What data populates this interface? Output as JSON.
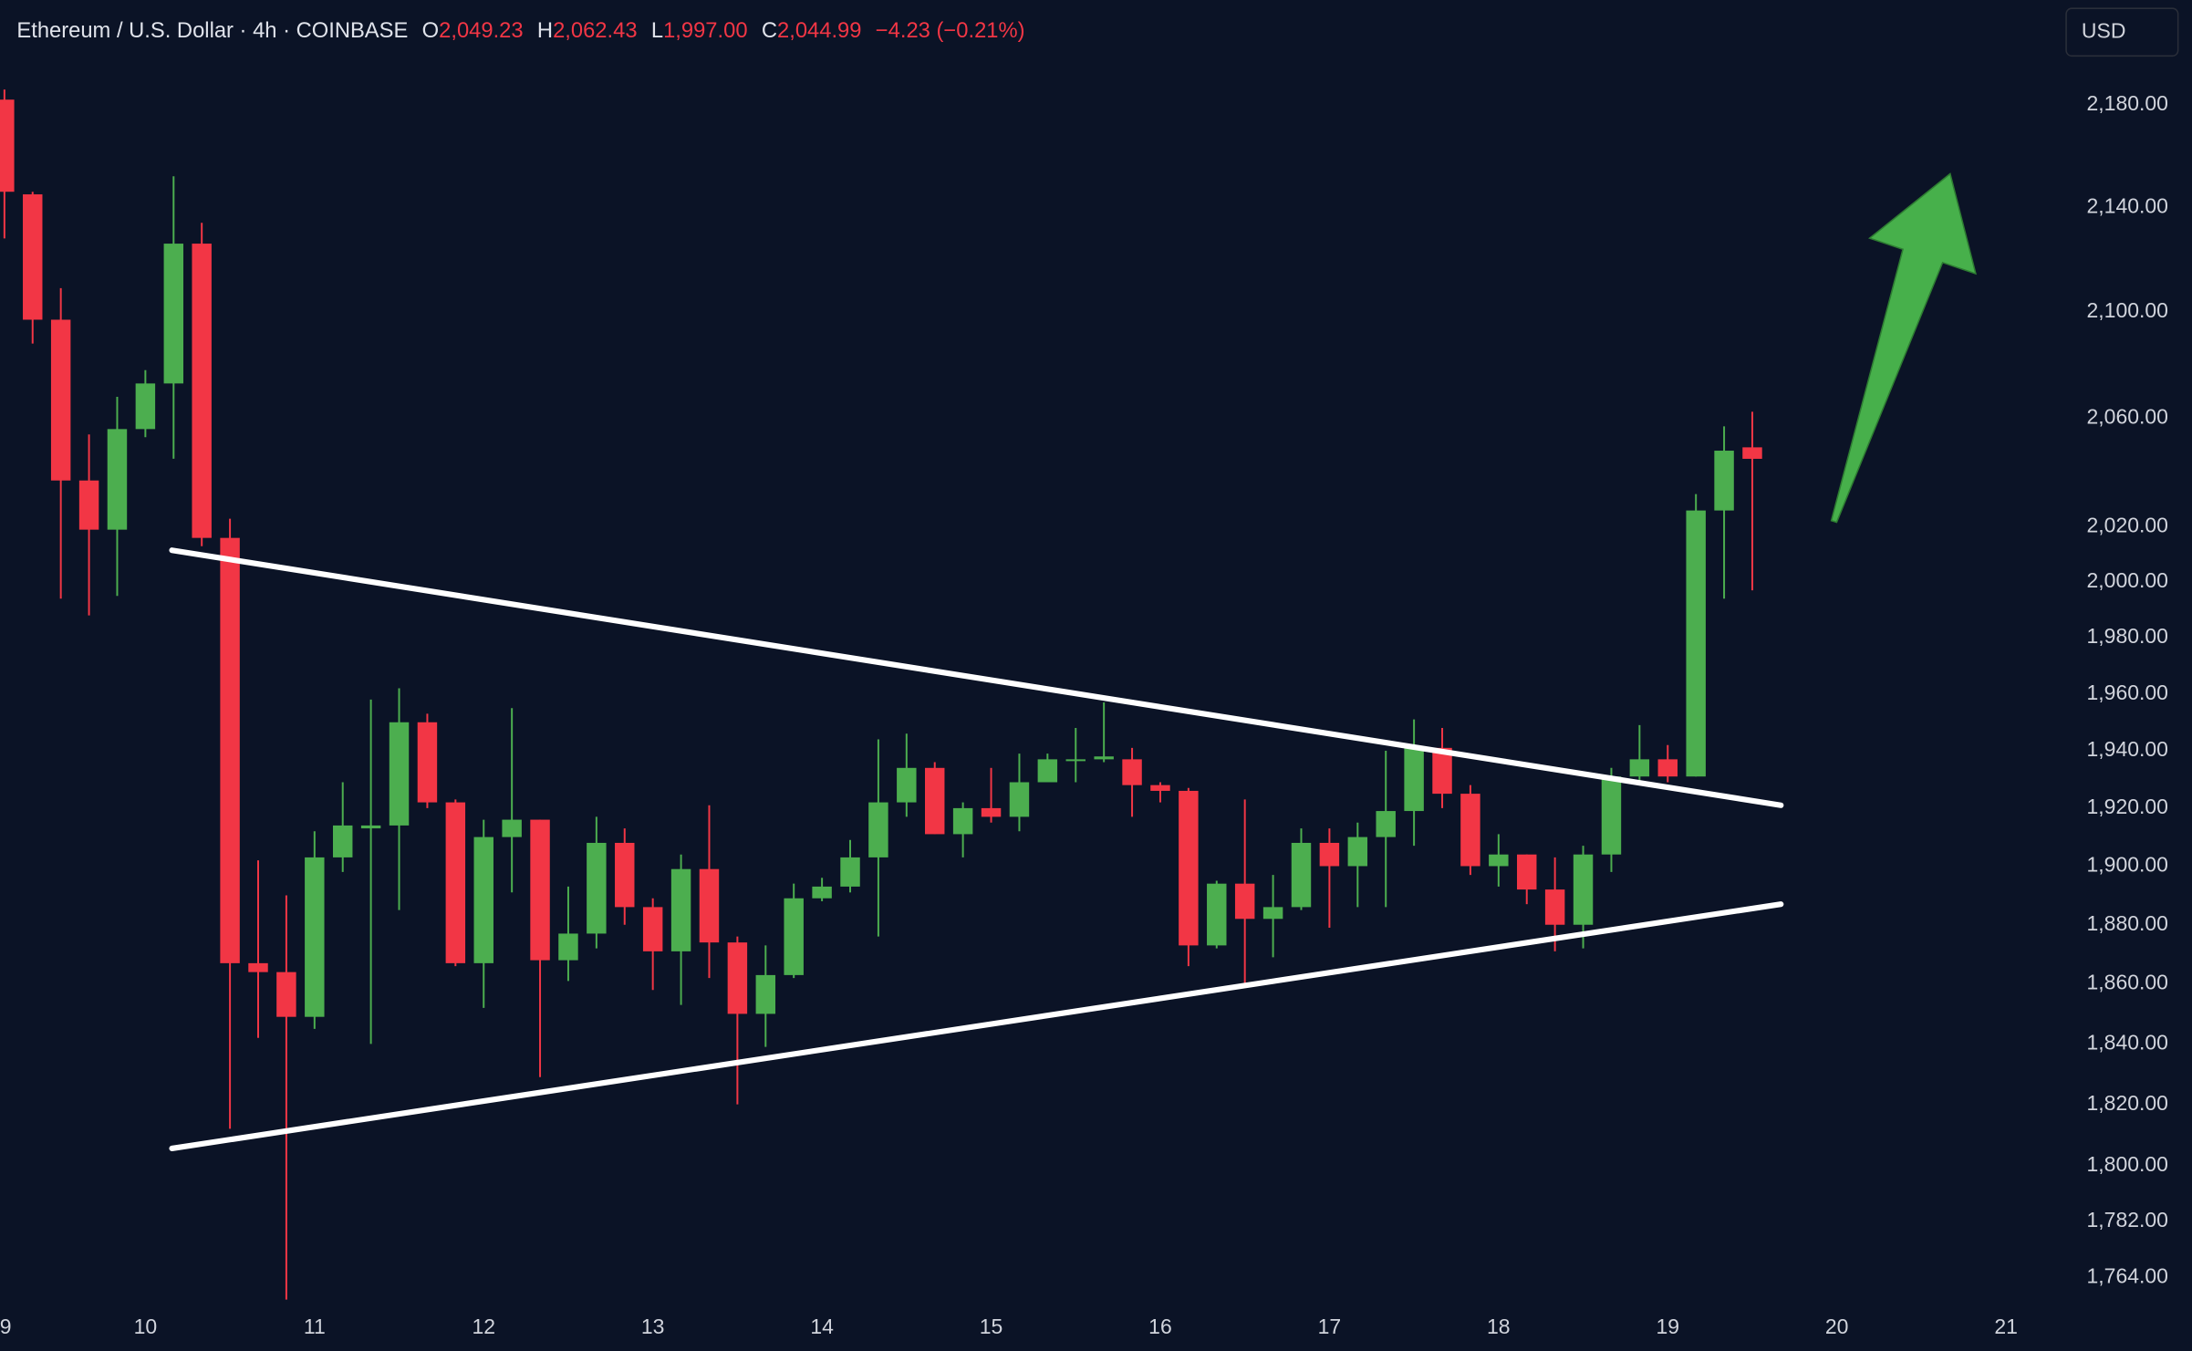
{
  "header": {
    "symbol": "Ethereum / U.S. Dollar · 4h · COINBASE",
    "open_label": "O",
    "open": "2,049.23",
    "high_label": "H",
    "high": "2,062.43",
    "low_label": "L",
    "low": "1,997.00",
    "close_label": "C",
    "close": "2,044.99",
    "change": "−4.23 (−0.21%)"
  },
  "currency_button": "USD",
  "chart_data": {
    "type": "candlestick",
    "log_scale": true,
    "grid": false,
    "up_color": "#4cae4f",
    "down_color": "#f23645",
    "x": [
      9.1667,
      9.3333,
      9.5,
      9.6667,
      9.8333,
      10,
      10.1667,
      10.3333,
      10.5,
      10.6667,
      10.8333,
      11,
      11.1667,
      11.3333,
      11.5,
      11.6667,
      11.8333,
      12,
      12.1667,
      12.3333,
      12.5,
      12.6667,
      12.8333,
      13,
      13.1667,
      13.3333,
      13.5,
      13.6667,
      13.8333,
      14,
      14.1667,
      14.3333,
      14.5,
      14.6667,
      14.8333,
      15,
      15.1667,
      15.3333,
      15.5,
      15.6667,
      15.8333,
      16,
      16.1667,
      16.3333,
      16.5,
      16.6667,
      16.8333,
      17,
      17.1667,
      17.3333,
      17.5,
      17.6667,
      17.8333,
      18,
      18.1667,
      18.3333,
      18.5,
      18.6667,
      18.8333,
      19,
      19.1667,
      19.3333,
      19.5
    ],
    "open": [
      2182,
      2145,
      2097,
      2037,
      2019,
      2056,
      2073,
      2126,
      2016,
      1867,
      1864,
      1849,
      1903,
      1913,
      1914,
      1950,
      1922,
      1867,
      1910,
      1916,
      1868,
      1877,
      1908,
      1886,
      1871,
      1899,
      1874,
      1850,
      1863,
      1889,
      1893,
      1903,
      1922,
      1934,
      1911,
      1920,
      1917,
      1929,
      1937,
      1937,
      1937,
      1928,
      1926,
      1873,
      1894,
      1882,
      1886,
      1908,
      1900,
      1910,
      1919,
      1941,
      1925,
      1900,
      1904,
      1892,
      1880,
      1904,
      1931,
      1937,
      1931,
      2026,
      2049.23
    ],
    "high": [
      2186,
      2146,
      2109,
      2054,
      2068,
      2078,
      2152,
      2134,
      2023,
      1902,
      1890,
      1912,
      1929,
      1958,
      1962,
      1953,
      1923,
      1916,
      1955,
      1916,
      1893,
      1917,
      1913,
      1889,
      1904,
      1921,
      1876,
      1873,
      1894,
      1896,
      1909,
      1944,
      1946,
      1936,
      1922,
      1934,
      1939,
      1939,
      1948,
      1957,
      1941,
      1929,
      1927,
      1895,
      1923,
      1897,
      1913,
      1913,
      1915,
      1940,
      1951,
      1948,
      1928,
      1911,
      1904,
      1903,
      1907,
      1934,
      1949,
      1942,
      2032,
      2057,
      2062.43
    ],
    "low": [
      2128,
      2088,
      1994,
      1988,
      1995,
      2053,
      2045,
      2013,
      1812,
      1842,
      1757,
      1845,
      1898,
      1840,
      1885,
      1920,
      1866,
      1852,
      1891,
      1829,
      1861,
      1872,
      1880,
      1858,
      1853,
      1862,
      1820,
      1839,
      1862,
      1888,
      1891,
      1876,
      1917,
      1911,
      1903,
      1915,
      1912,
      1929,
      1929,
      1936,
      1917,
      1922,
      1866,
      1872,
      1860,
      1869,
      1885,
      1879,
      1886,
      1886,
      1907,
      1920,
      1897,
      1893,
      1887,
      1871,
      1872,
      1898,
      1928,
      1929,
      1931,
      1994,
      1997
    ],
    "close": [
      2146,
      2097,
      2037,
      2019,
      2056,
      2073,
      2126,
      2016,
      1867,
      1864,
      1849,
      1903,
      1914,
      1914,
      1950,
      1922,
      1867,
      1910,
      1916,
      1868,
      1877,
      1908,
      1886,
      1871,
      1899,
      1874,
      1850,
      1863,
      1889,
      1893,
      1903,
      1922,
      1934,
      1911,
      1920,
      1917,
      1929,
      1937,
      1937,
      1938,
      1928,
      1926,
      1873,
      1894,
      1882,
      1886,
      1908,
      1900,
      1910,
      1919,
      1941,
      1925,
      1900,
      1904,
      1892,
      1880,
      1904,
      1931,
      1937,
      1931,
      2026,
      2048,
      2044.99
    ],
    "xlim": [
      9.1405,
      21.273
    ],
    "xticks": [
      9,
      10,
      11,
      12,
      13,
      14,
      15,
      16,
      17,
      18,
      19,
      20,
      21
    ],
    "ylim": [
      1754.6,
      2221.6
    ],
    "yticks": [
      {
        "value": 2180,
        "label": "2,180.00"
      },
      {
        "value": 2140,
        "label": "2,140.00"
      },
      {
        "value": 2100,
        "label": "2,100.00"
      },
      {
        "value": 2060,
        "label": "2,060.00"
      },
      {
        "value": 2020,
        "label": "2,020.00"
      },
      {
        "value": 2000,
        "label": "2,000.00"
      },
      {
        "value": 1980,
        "label": "1,980.00"
      },
      {
        "value": 1960,
        "label": "1,960.00"
      },
      {
        "value": 1940,
        "label": "1,940.00"
      },
      {
        "value": 1920,
        "label": "1,920.00"
      },
      {
        "value": 1900,
        "label": "1,900.00"
      },
      {
        "value": 1880,
        "label": "1,880.00"
      },
      {
        "value": 1860,
        "label": "1,860.00"
      },
      {
        "value": 1840,
        "label": "1,840.00"
      },
      {
        "value": 1820,
        "label": "1,820.00"
      },
      {
        "value": 1800,
        "label": "1,800.00"
      },
      {
        "value": 1782,
        "label": "1,782.00"
      },
      {
        "value": 1764,
        "label": "1,764.00"
      }
    ],
    "trendlines": [
      {
        "color": "#ffffff",
        "points": [
          [
            10.157,
            2011.5
          ],
          [
            19.669,
            1921
          ]
        ]
      },
      {
        "color": "#ffffff",
        "points": [
          [
            10.157,
            1805.6
          ],
          [
            19.669,
            1887
          ]
        ]
      }
    ],
    "arrow": {
      "color": "#47b04b",
      "from": [
        19.983,
        2022
      ],
      "to": [
        20.67,
        2153
      ]
    }
  }
}
